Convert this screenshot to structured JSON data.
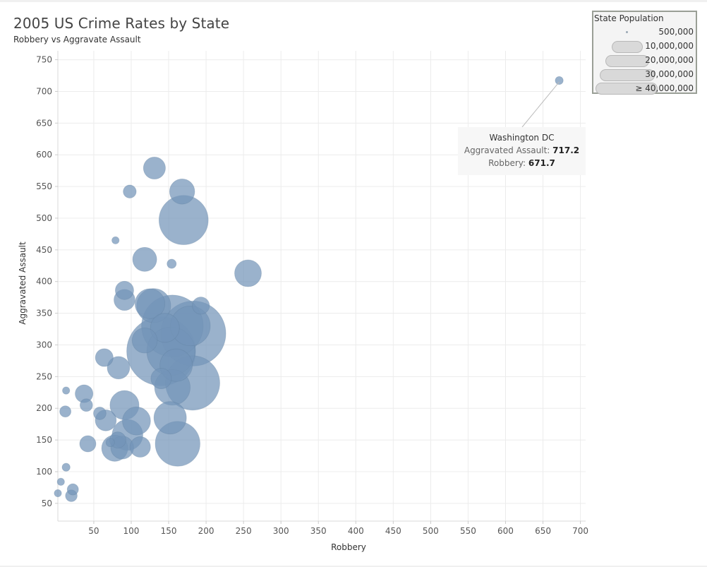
{
  "chart_data": {
    "type": "scatter",
    "title": "2005 US Crime Rates by State",
    "subtitle": "Robbery vs Aggravate Assault",
    "xlabel": "Robbery",
    "ylabel": "Aggravated Assault",
    "x_ticks": [
      50,
      100,
      150,
      200,
      250,
      300,
      350,
      400,
      450,
      500,
      550,
      600,
      650,
      700
    ],
    "y_ticks": [
      50,
      100,
      150,
      200,
      250,
      300,
      350,
      400,
      450,
      500,
      550,
      600,
      650,
      700,
      750
    ],
    "xlim": [
      2,
      707
    ],
    "ylim": [
      22,
      764
    ],
    "grid": true,
    "size_legend": {
      "title": "State Population",
      "entries": [
        "500,000",
        "10,000,000",
        "20,000,000",
        "30,000,000",
        "≥ 40,000,000"
      ]
    },
    "points": [
      {
        "robbery": 671.7,
        "assault": 717.2,
        "population": 600000,
        "label": "Washington DC"
      },
      {
        "robbery": 131,
        "assault": 579,
        "population": 4600000
      },
      {
        "robbery": 98,
        "assault": 542,
        "population": 1600000
      },
      {
        "robbery": 168,
        "assault": 542,
        "population": 6000000
      },
      {
        "robbery": 170,
        "assault": 497,
        "population": 23000000
      },
      {
        "robbery": 79,
        "assault": 465,
        "population": 500000
      },
      {
        "robbery": 118,
        "assault": 435,
        "population": 5500000
      },
      {
        "robbery": 154,
        "assault": 428,
        "population": 800000
      },
      {
        "robbery": 256,
        "assault": 413,
        "population": 6800000
      },
      {
        "robbery": 91,
        "assault": 386,
        "population": 3200000
      },
      {
        "robbery": 91,
        "assault": 371,
        "population": 4200000
      },
      {
        "robbery": 125,
        "assault": 365,
        "population": 8500000
      },
      {
        "robbery": 130,
        "assault": 362,
        "population": 11000000
      },
      {
        "robbery": 193,
        "assault": 362,
        "population": 2800000
      },
      {
        "robbery": 145,
        "assault": 327,
        "population": 8000000
      },
      {
        "robbery": 155,
        "assault": 330,
        "population": 36000000
      },
      {
        "robbery": 183,
        "assault": 318,
        "population": 40000000
      },
      {
        "robbery": 179,
        "assault": 330,
        "population": 15000000
      },
      {
        "robbery": 118,
        "assault": 307,
        "population": 6000000
      },
      {
        "robbery": 140,
        "assault": 290,
        "population": 45000000
      },
      {
        "robbery": 153,
        "assault": 290,
        "population": 22000000
      },
      {
        "robbery": 64,
        "assault": 280,
        "population": 3000000
      },
      {
        "robbery": 160,
        "assault": 268,
        "population": 10000000
      },
      {
        "robbery": 83,
        "assault": 264,
        "population": 4800000
      },
      {
        "robbery": 140,
        "assault": 247,
        "population": 4000000
      },
      {
        "robbery": 182,
        "assault": 240,
        "population": 28000000
      },
      {
        "robbery": 155,
        "assault": 233,
        "population": 12000000
      },
      {
        "robbery": 13,
        "assault": 228,
        "population": 500000
      },
      {
        "robbery": 37,
        "assault": 223,
        "population": 3000000
      },
      {
        "robbery": 91,
        "assault": 205,
        "population": 8000000
      },
      {
        "robbery": 40,
        "assault": 205,
        "population": 1500000
      },
      {
        "robbery": 12,
        "assault": 195,
        "population": 1200000
      },
      {
        "robbery": 58,
        "assault": 192,
        "population": 1500000
      },
      {
        "robbery": 66,
        "assault": 181,
        "population": 4200000
      },
      {
        "robbery": 107,
        "assault": 180,
        "population": 7500000
      },
      {
        "robbery": 152,
        "assault": 185,
        "population": 10000000
      },
      {
        "robbery": 95,
        "assault": 158,
        "population": 9000000
      },
      {
        "robbery": 82,
        "assault": 150,
        "population": 2500000
      },
      {
        "robbery": 72,
        "assault": 146,
        "population": 700000
      },
      {
        "robbery": 42,
        "assault": 144,
        "population": 2500000
      },
      {
        "robbery": 88,
        "assault": 138,
        "population": 5000000
      },
      {
        "robbery": 78,
        "assault": 137,
        "population": 6500000
      },
      {
        "robbery": 112,
        "assault": 139,
        "population": 4000000
      },
      {
        "robbery": 162,
        "assault": 144,
        "population": 19000000
      },
      {
        "robbery": 13,
        "assault": 107,
        "population": 600000
      },
      {
        "robbery": 6,
        "assault": 84,
        "population": 500000
      },
      {
        "robbery": 22,
        "assault": 72,
        "population": 1200000
      },
      {
        "robbery": 20,
        "assault": 62,
        "population": 1300000
      },
      {
        "robbery": 2,
        "assault": 66,
        "population": 500000
      }
    ]
  },
  "tooltip": {
    "state": "Washington DC",
    "assault_label": "Aggravated Assault:",
    "assault_value": "717.2",
    "robbery_label": "Robbery:",
    "robbery_value": "671.7"
  },
  "colors": {
    "bubble_fill": "#7394b8",
    "bubble_stroke": "#5e7e9f",
    "grid": "#ececec",
    "legend_border": "#9a9f96"
  }
}
